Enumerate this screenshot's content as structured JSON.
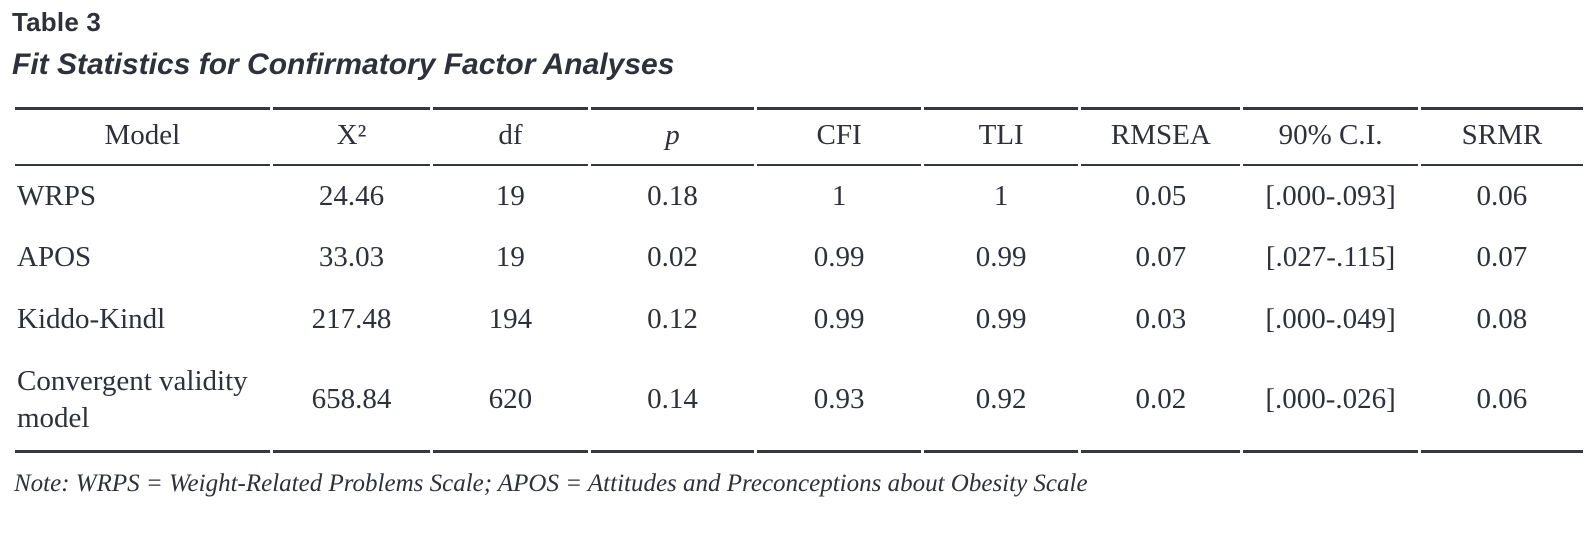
{
  "chart_data": {
    "type": "table",
    "title": "Table 3",
    "subtitle": "Fit Statistics for Confirmatory Factor Analyses",
    "columns": [
      "Model",
      "X²",
      "df",
      "p",
      "CFI",
      "TLI",
      "RMSEA",
      "90% C.I.",
      "SRMR"
    ],
    "rows": [
      {
        "model": "WRPS",
        "chi_square": "24.46",
        "df": "19",
        "p": "0.18",
        "cfi": "1",
        "tli": "1",
        "rmsea": "0.05",
        "ci90": "[.000-.093]",
        "srmr": "0.06"
      },
      {
        "model": "APOS",
        "chi_square": "33.03",
        "df": "19",
        "p": "0.02",
        "cfi": "0.99",
        "tli": "0.99",
        "rmsea": "0.07",
        "ci90": "[.027-.115]",
        "srmr": "0.07"
      },
      {
        "model": "Kiddo-Kindl",
        "chi_square": "217.48",
        "df": "194",
        "p": "0.12",
        "cfi": "0.99",
        "tli": "0.99",
        "rmsea": "0.03",
        "ci90": "[.000-.049]",
        "srmr": "0.08"
      },
      {
        "model": "Convergent validity model",
        "chi_square": "658.84",
        "df": "620",
        "p": "0.14",
        "cfi": "0.93",
        "tli": "0.92",
        "rmsea": "0.02",
        "ci90": "[.000-.026]",
        "srmr": "0.06"
      }
    ],
    "note": "Note: WRPS = Weight-Related Problems Scale; APOS = Attitudes and Preconceptions about Obesity Scale",
    "colors": {
      "text": "#2e3139",
      "rule": "#35383f",
      "background": "#ffffff"
    }
  }
}
